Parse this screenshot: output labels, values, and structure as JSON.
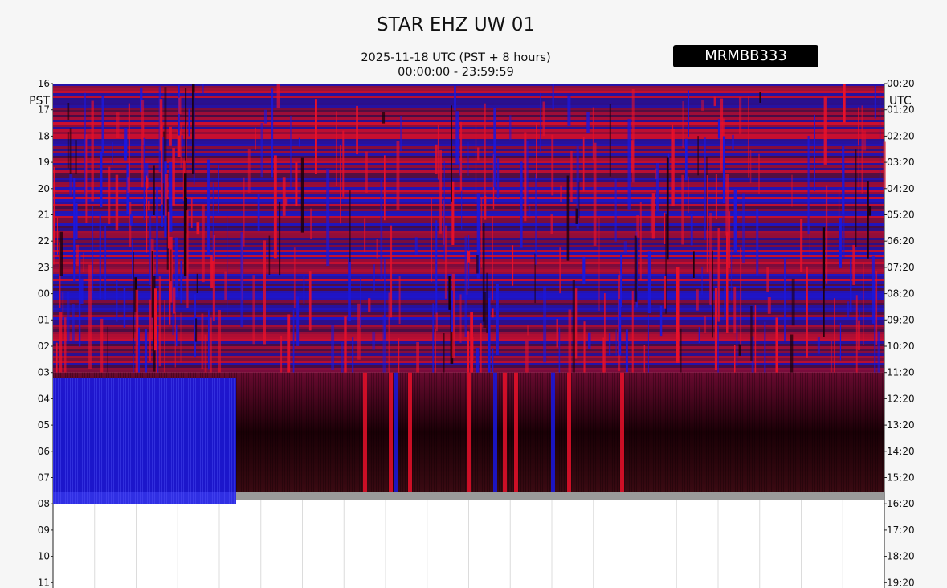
{
  "title": "STAR EHZ UW 01",
  "subtitle_line1": "2025-11-18 UTC (PST + 8 hours)",
  "subtitle_line2": "00:00:00 - 23:59:59",
  "badge": "MRMBB333",
  "colors": {
    "red": "#e8102a",
    "blue": "#1a18e0",
    "dark": "#1a0006",
    "gray": "#9a9a9a",
    "background": "#f6f6f6"
  },
  "chart_data": {
    "type": "heatmap",
    "description_axis_left": "PST",
    "description_axis_right": "UTC",
    "left_axis_label": "PST",
    "right_axis_label": "UTC",
    "left_ticks": [
      "16",
      "17",
      "18",
      "19",
      "20",
      "21",
      "22",
      "23",
      "00",
      "01",
      "02",
      "03",
      "04",
      "05",
      "06",
      "07",
      "08",
      "09",
      "10",
      "11"
    ],
    "right_ticks": [
      "00:20",
      "01:20",
      "02:20",
      "03:20",
      "04:20",
      "05:20",
      "06:20",
      "07:20",
      "08:20",
      "09:20",
      "10:20",
      "11:20",
      "12:20",
      "13:20",
      "14:20",
      "15:20",
      "16:20",
      "17:20",
      "18:20",
      "19:20"
    ],
    "x_minutes_per_row": 60,
    "grid": true
  }
}
